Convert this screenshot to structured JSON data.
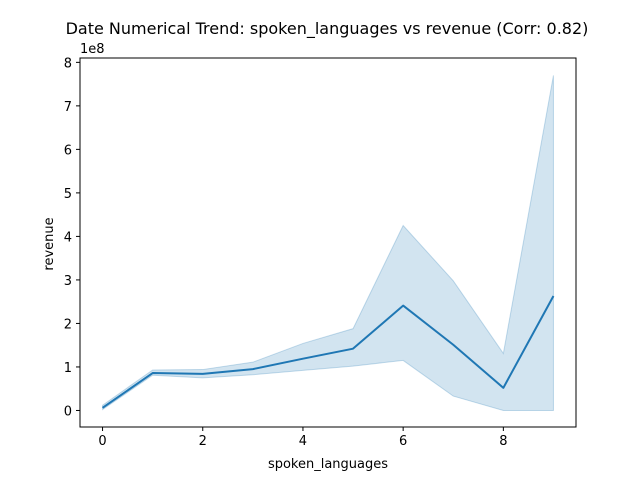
{
  "chart_data": {
    "type": "line",
    "title": "Date Numerical Trend: spoken_languages vs revenue (Corr: 0.82)",
    "xlabel": "spoken_languages",
    "ylabel": "revenue",
    "y_scale_label": "1e8",
    "xlim": [
      -0.45,
      9.45
    ],
    "ylim": [
      -0.38,
      8.1
    ],
    "y_units": "1e8",
    "x_ticks": [
      0,
      2,
      4,
      6,
      8
    ],
    "y_ticks": [
      0,
      1,
      2,
      3,
      4,
      5,
      6,
      7,
      8
    ],
    "grid": false,
    "series": [
      {
        "x": [
          0,
          1,
          2,
          3,
          4,
          5,
          6,
          7,
          8,
          9
        ],
        "values": [
          0.06,
          0.86,
          0.84,
          0.95,
          1.19,
          1.42,
          2.41,
          1.51,
          0.52,
          2.63
        ],
        "ci_low": [
          0.02,
          0.81,
          0.75,
          0.82,
          0.92,
          1.02,
          1.15,
          0.33,
          0.0,
          0.0
        ],
        "ci_high": [
          0.12,
          0.93,
          0.94,
          1.11,
          1.54,
          1.88,
          4.25,
          2.98,
          1.31,
          7.7
        ],
        "color": "#1f77b4",
        "band_color": "#1f77b4"
      }
    ]
  }
}
